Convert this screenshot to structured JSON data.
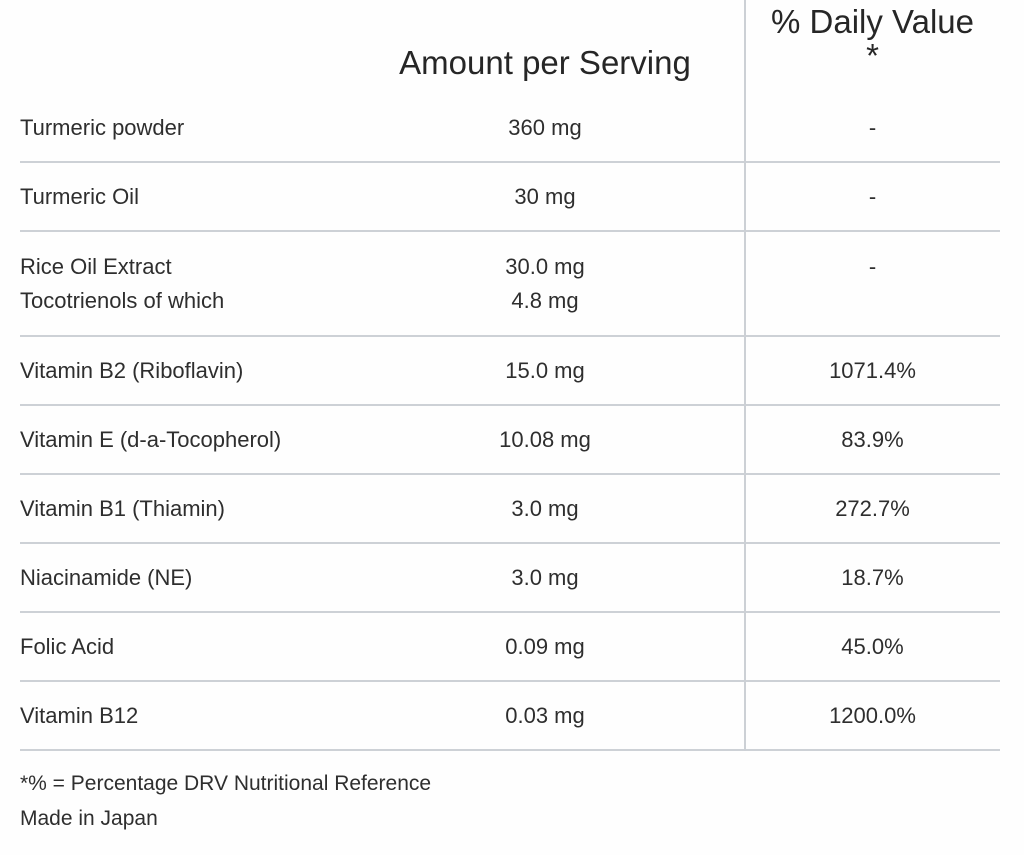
{
  "colors": {
    "background": "#fefefe",
    "text": "#2e2e2e",
    "header_text": "#262626",
    "rule_line": "#cdd1d6",
    "column_divider": "#ccd0d5"
  },
  "table": {
    "columns": [
      {
        "label": ""
      },
      {
        "label": "Amount per Serving"
      },
      {
        "label": "% Daily Value",
        "label_line2": "*"
      }
    ],
    "rows": [
      {
        "lines": [
          {
            "name": "Turmeric powder",
            "amount": "360 mg",
            "dv": "-"
          }
        ]
      },
      {
        "lines": [
          {
            "name": "Turmeric Oil",
            "amount": "30 mg",
            "dv": "-"
          }
        ]
      },
      {
        "lines": [
          {
            "name": "Rice Oil Extract",
            "amount": "30.0 mg",
            "dv": "-"
          },
          {
            "name": "Tocotrienols of which",
            "amount": "4.8 mg",
            "dv": ""
          }
        ]
      },
      {
        "lines": [
          {
            "name": "Vitamin B2 (Riboflavin)",
            "amount": "15.0 mg",
            "dv": "1071.4%"
          }
        ]
      },
      {
        "lines": [
          {
            "name": "Vitamin E (d-a-Tocopherol)",
            "amount": "10.08 mg",
            "dv": "83.9%"
          }
        ]
      },
      {
        "lines": [
          {
            "name": "Vitamin B1 (Thiamin)",
            "amount": "3.0 mg",
            "dv": "272.7%"
          }
        ]
      },
      {
        "lines": [
          {
            "name": "Niacinamide (NE)",
            "amount": "3.0 mg",
            "dv": "18.7%"
          }
        ]
      },
      {
        "lines": [
          {
            "name": "Folic Acid",
            "amount": "0.09 mg",
            "dv": "45.0%"
          }
        ]
      },
      {
        "lines": [
          {
            "name": "Vitamin B12",
            "amount": "0.03 mg",
            "dv": "1200.0%"
          }
        ]
      }
    ]
  },
  "footer": {
    "reference_note": "*% = Percentage DRV Nutritional Reference",
    "origin_note": "Made in Japan"
  }
}
